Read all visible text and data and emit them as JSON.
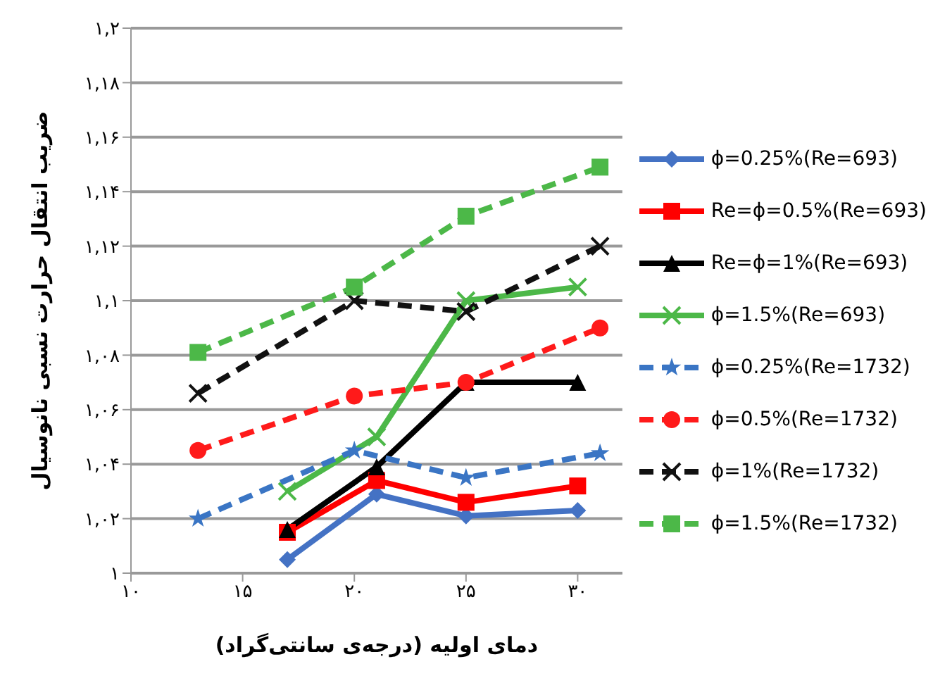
{
  "chart_data": {
    "type": "line",
    "xlabel": "دمای اولیه (درجه‌ی سانتی‌گراد)",
    "ylabel": "ضریب انتقال حرارت نسبی نانوسیال",
    "xlim": [
      10,
      32
    ],
    "xticks": [
      {
        "value": 10,
        "label": "۱۰"
      },
      {
        "value": 15,
        "label": "۱۵"
      },
      {
        "value": 20,
        "label": "۲۰"
      },
      {
        "value": 25,
        "label": "۲۵"
      },
      {
        "value": 30,
        "label": "۳۰"
      }
    ],
    "ylim": [
      1,
      1.2
    ],
    "yticks": [
      {
        "value": 1,
        "label": "۱"
      },
      {
        "value": 1.02,
        "label": "۱,۰۲"
      },
      {
        "value": 1.04,
        "label": "۱,۰۴"
      },
      {
        "value": 1.06,
        "label": "۱,۰۶"
      },
      {
        "value": 1.08,
        "label": "۱,۰۸"
      },
      {
        "value": 1.1,
        "label": "۱,۱"
      },
      {
        "value": 1.12,
        "label": "۱,۱۲"
      },
      {
        "value": 1.14,
        "label": "۱,۱۴"
      },
      {
        "value": 1.16,
        "label": "۱,۱۶"
      },
      {
        "value": 1.18,
        "label": "۱,۱۸"
      },
      {
        "value": 1.2,
        "label": "۱,۲"
      }
    ],
    "grid": "y",
    "legend": "right",
    "series": [
      {
        "name": "ϕ=0.25%(Re=693)",
        "color": "#4472c4",
        "x": [
          17,
          21,
          25,
          30
        ],
        "values": [
          1.005,
          1.029,
          1.021,
          1.023
        ],
        "marker": "diamond",
        "line_style": "solid"
      },
      {
        "name": "Re=ϕ=0.5%(Re=693)",
        "color": "#ff0000",
        "x": [
          17,
          21,
          25,
          30
        ],
        "values": [
          1.015,
          1.034,
          1.026,
          1.032
        ],
        "marker": "square",
        "line_style": "solid"
      },
      {
        "name": "Re=ϕ=1%(Re=693)",
        "color": "#000000",
        "x": [
          17,
          21,
          25,
          30
        ],
        "values": [
          1.016,
          1.039,
          1.07,
          1.07
        ],
        "marker": "triangle",
        "line_style": "solid"
      },
      {
        "name": "ϕ=1.5%(Re=693)",
        "color": "#4cb848",
        "x": [
          17,
          21,
          25,
          30
        ],
        "values": [
          1.03,
          1.05,
          1.1,
          1.105
        ],
        "marker": "cross",
        "line_style": "solid"
      },
      {
        "name": "ϕ=0.25%(Re=1732)",
        "color": "#3a75c4",
        "x": [
          13,
          20,
          25,
          31
        ],
        "values": [
          1.02,
          1.045,
          1.035,
          1.044
        ],
        "marker": "star",
        "line_style": "dashed"
      },
      {
        "name": "ϕ=0.5%(Re=1732)",
        "color": "#ff1a1a",
        "x": [
          13,
          20,
          25,
          31
        ],
        "values": [
          1.045,
          1.065,
          1.07,
          1.09
        ],
        "marker": "circle",
        "line_style": "dashed"
      },
      {
        "name": "ϕ=1%(Re=1732)",
        "color": "#111111",
        "x": [
          13,
          20,
          25,
          31
        ],
        "values": [
          1.066,
          1.1,
          1.096,
          1.12
        ],
        "marker": "cross",
        "line_style": "dashed"
      },
      {
        "name": "ϕ=1.5%(Re=1732)",
        "color": "#4cb848",
        "x": [
          13,
          20,
          25,
          31
        ],
        "values": [
          1.081,
          1.105,
          1.131,
          1.149
        ],
        "marker": "square",
        "line_style": "dashed"
      }
    ]
  }
}
